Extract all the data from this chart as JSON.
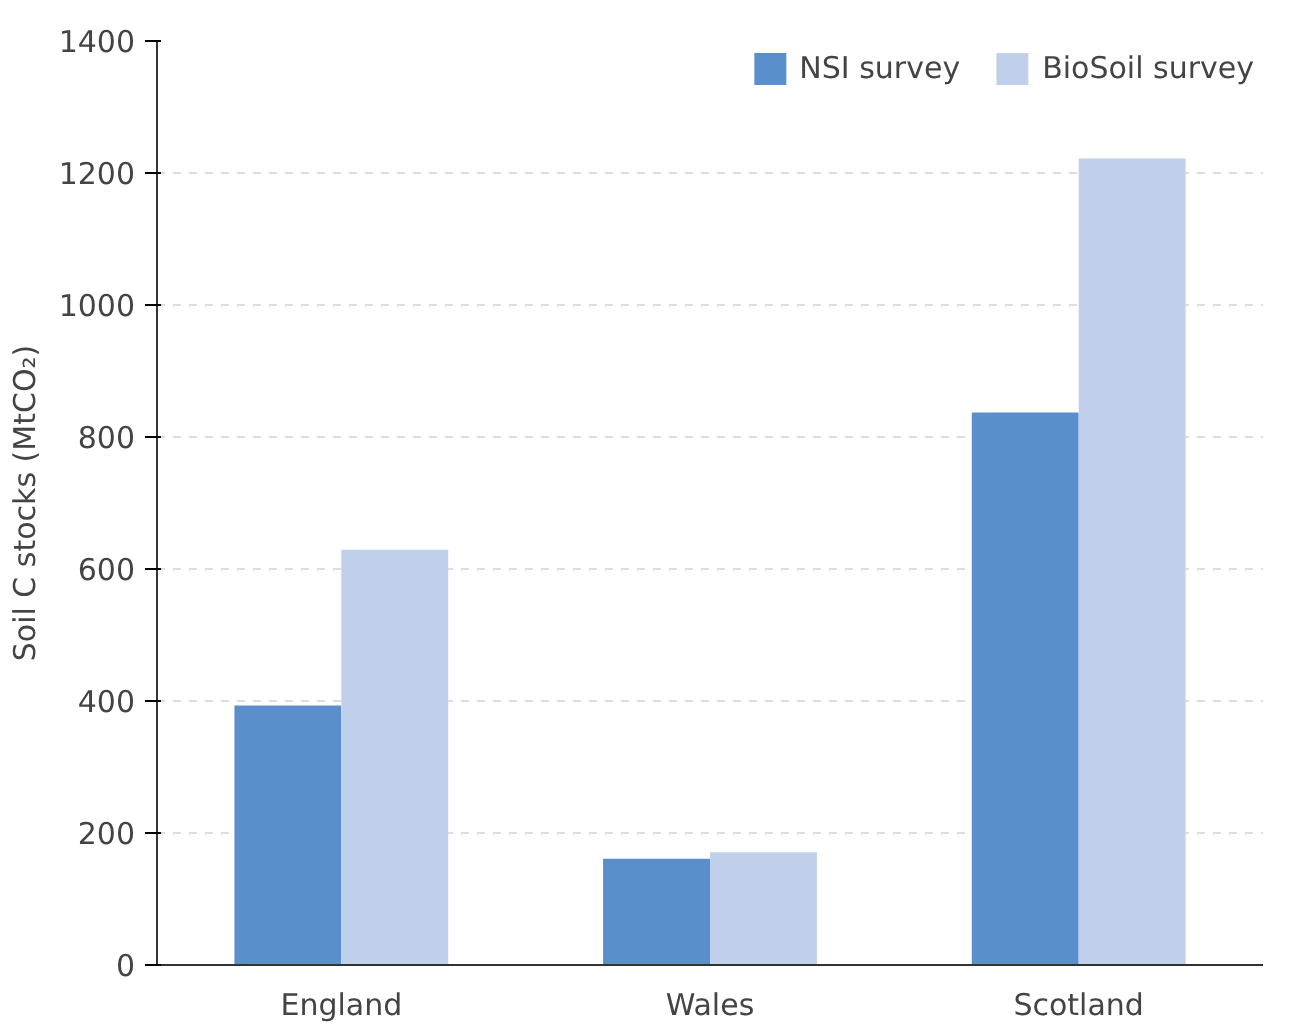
{
  "chart_data": {
    "type": "bar",
    "ylabel": "Soil C stocks (MtCO₂)",
    "categories": [
      "England",
      "Wales",
      "Scotland"
    ],
    "series": [
      {
        "name": "NSI survey",
        "color": "#5b8fcb",
        "values": [
          393,
          161,
          837
        ]
      },
      {
        "name": "BioSoil survey",
        "color": "#c0d0ea",
        "values": [
          629,
          171,
          1222
        ]
      }
    ],
    "ylim": [
      0,
      1400
    ],
    "yticks": [
      0,
      200,
      400,
      600,
      800,
      1000,
      1200,
      1400
    ],
    "grid": "y",
    "legend": "top right"
  }
}
